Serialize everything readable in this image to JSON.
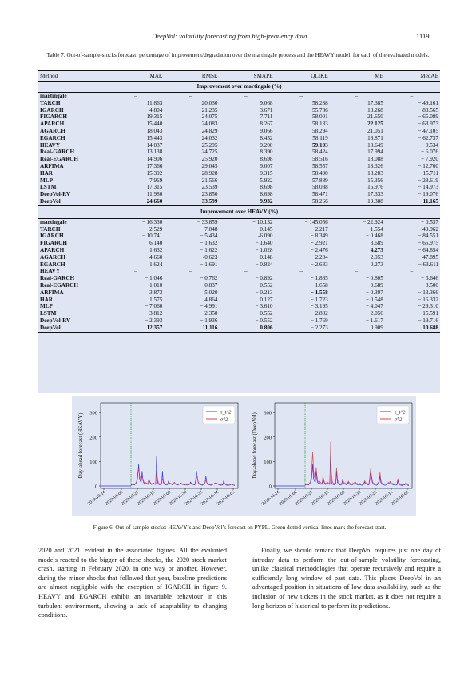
{
  "header": {
    "running_title": "DeepVol: volatility forecasting from high-frequency data",
    "page_number": "1119"
  },
  "table": {
    "caption": "Table 7.  Out-of-sample-stocks forecast: percentage of improvement/degradation over the martingale process and the HEAVY model. for each of the evaluated models.",
    "columns": [
      "Method",
      "MAE",
      "RMSE",
      "SMAPE",
      "QLIKE",
      "ME",
      "MedAE"
    ],
    "section1_title": "Improvement over martingale (%)",
    "section1_rows": [
      {
        "method": "martingale",
        "values": [
          "–",
          "–",
          "–",
          "–",
          "–",
          "–"
        ],
        "bold": []
      },
      {
        "method": "TARCH",
        "values": [
          "11.863",
          "20.030",
          "9.068",
          "58.288",
          "17.385",
          "− 49.161"
        ],
        "bold": []
      },
      {
        "method": "IGARCH",
        "values": [
          "4.804",
          "21.235",
          "3.671",
          "55.786",
          "18.268",
          "− 83.565"
        ],
        "bold": []
      },
      {
        "method": "FIGARCH",
        "values": [
          "19.315",
          "24.075",
          "7.711",
          "58.001",
          "21.650",
          "− 65.089"
        ],
        "bold": []
      },
      {
        "method": "APARCH",
        "values": [
          "15.440",
          "24.083",
          "8.267",
          "58.183",
          "22.125",
          "− 63.973"
        ],
        "bold": [
          4
        ]
      },
      {
        "method": "AGARCH",
        "values": [
          "18.043",
          "24.829",
          "9.066",
          "58.294",
          "21.051",
          "− 47.105"
        ],
        "bold": []
      },
      {
        "method": "EGARCH",
        "values": [
          "15.443",
          "24.032",
          "8.452",
          "58.119",
          "18.871",
          "− 62.737"
        ],
        "bold": []
      },
      {
        "method": "HEAVY",
        "values": [
          "14.037",
          "25.295",
          "9.200",
          "59.193",
          "18.649",
          "0.534"
        ],
        "bold": [
          3
        ]
      },
      {
        "method": "Real-GARCH",
        "values": [
          "13.138",
          "24.725",
          "8.390",
          "58.424",
          "17.994",
          "− 6.076"
        ],
        "bold": []
      },
      {
        "method": "Real-EGARCH",
        "values": [
          "14.906",
          "25.920",
          "8.698",
          "58.516",
          "18.088",
          "− 7.920"
        ],
        "bold": []
      },
      {
        "method": "ARFIMA",
        "values": [
          "17.366",
          "29.045",
          "9.007",
          "58.557",
          "18.326",
          "− 12.760"
        ],
        "bold": []
      },
      {
        "method": "HAR",
        "values": [
          "15.392",
          "28.928",
          "9.315",
          "58.490",
          "18.203",
          "− 15.711"
        ],
        "bold": []
      },
      {
        "method": "MLP",
        "values": [
          "7.969",
          "21.566",
          "5.922",
          "57.889",
          "15.356",
          "− 28.619"
        ],
        "bold": []
      },
      {
        "method": "LSTM",
        "values": [
          "17.315",
          "23.539",
          "8.698",
          "58.088",
          "16.976",
          "− 14.973"
        ],
        "bold": []
      },
      {
        "method": "DeepVol-RV",
        "values": [
          "11.980",
          "23.850",
          "8.698",
          "58.471",
          "17.333",
          "− 19.076"
        ],
        "bold": []
      },
      {
        "method": "DeepVol",
        "values": [
          "24.660",
          "33.599",
          "9.932",
          "58.266",
          "19.388",
          "11.165"
        ],
        "bold": [
          0,
          1,
          2,
          5
        ]
      }
    ],
    "section2_title": "Improvement over HEAVY (%)",
    "section2_rows": [
      {
        "method": "martingale",
        "values": [
          "− 16.330",
          "− 33.859",
          "− 10.132",
          "− 145.056",
          "− 22.924",
          "− 0.537"
        ],
        "bold": []
      },
      {
        "method": "TARCH",
        "values": [
          "− 2.529",
          "− 7.048",
          "− 0.145",
          "− 2.217",
          "− 1.554",
          "− 49.962"
        ],
        "bold": []
      },
      {
        "method": "IGARCH",
        "values": [
          "− 10.741",
          "− 5.434",
          "-6.090",
          "− 8.349",
          "− 0.468",
          "− 84.551"
        ],
        "bold": []
      },
      {
        "method": "FIGARCH",
        "values": [
          "6.140",
          "− 1.632",
          "− 1.640",
          "− 2.921",
          "3.689",
          "− 65.975"
        ],
        "bold": []
      },
      {
        "method": "APARCH",
        "values": [
          "1.632",
          "− 1.622",
          "− 1.028",
          "− 2.476",
          "4.273",
          "− 64.854"
        ],
        "bold": [
          4
        ]
      },
      {
        "method": "AGARCH",
        "values": [
          "4.660",
          "-0.623",
          "− 0.148",
          "− 2.204",
          "2.953",
          "− 47.895"
        ],
        "bold": []
      },
      {
        "method": "EGARCH",
        "values": [
          "1.624",
          "− 1.691",
          "− 0.824",
          "− 2.633",
          "0.273",
          "− 63.611"
        ],
        "bold": []
      },
      {
        "method": "HEAVY",
        "values": [
          "–",
          "–",
          "–",
          "–",
          "–",
          "–"
        ],
        "bold": []
      },
      {
        "method": "Real-GARCH",
        "values": [
          "− 1.046",
          "− 0.762",
          "− 0.892",
          "− 1.885",
          "− 0.805",
          "− 6.646"
        ],
        "bold": []
      },
      {
        "method": "Real-EGARCH",
        "values": [
          "1.010",
          "0.837",
          "− 0.552",
          "− 1.658",
          "− 0.689",
          "− 8.500"
        ],
        "bold": []
      },
      {
        "method": "ARFIMA",
        "values": [
          "3.873",
          "5.020",
          "− 0.213",
          "− 1.558",
          "− 0.397",
          "− 13.366"
        ],
        "bold": [
          3
        ]
      },
      {
        "method": "HAR",
        "values": [
          "1.575",
          "4.864",
          "0.127",
          "− 1.723",
          "− 0.548",
          "− 16.332"
        ],
        "bold": []
      },
      {
        "method": "MLP",
        "values": [
          "− 7.060",
          "− 4.991",
          "− 3.610",
          "− 3.195",
          "− 4.047",
          "− 29.310"
        ],
        "bold": []
      },
      {
        "method": "LSTM",
        "values": [
          "3.812",
          "− 2.350",
          "− 0.552",
          "− 2.802",
          "− 2.056",
          "− 15.591"
        ],
        "bold": []
      },
      {
        "method": "DeepVol-RV",
        "values": [
          "− 2.393",
          "− 1.936",
          "− 0.552",
          "− 1.769",
          "− 1.617",
          "− 19.716"
        ],
        "bold": []
      },
      {
        "method": "DeepVol",
        "values": [
          "12.357",
          "11.116",
          "0.806",
          "− 2.273",
          "0.909",
          "10.688"
        ],
        "bold": [
          0,
          1,
          2,
          5
        ]
      }
    ]
  },
  "figure": {
    "caption": "Figure 6.  Out-of-sample-stocks: HEAVY’s and DeepVol’s forecast on PYPL. Green dotted vertical lines mark the forecast start.",
    "colors": {
      "realized": "#2b2bff",
      "forecast": "#e0303a",
      "start_line": "#2e9e3e",
      "background": "#dfe5f2"
    }
  },
  "chart_data": [
    {
      "type": "line",
      "ylabel": "Day-ahead forecast (HEAVY)",
      "ylim": [
        0,
        330
      ],
      "yticks": [
        "0",
        "100",
        "200",
        "300"
      ],
      "xticks": [
        "2019-10-14",
        "2020-01-06",
        "2020-03-27",
        "2020-06-18",
        "2020-09-09",
        "2020-11-30",
        "2021-02-23",
        "2021-05-14",
        "2021-08-05"
      ],
      "legend": [
        "τ_t^2",
        "σ̂^2"
      ],
      "legend_position": "top-right",
      "forecast_start_index": 2,
      "series": [
        {
          "name": "τ_t^2",
          "values": [
            4,
            5,
            6,
            5,
            4,
            8,
            12,
            18,
            40,
            90,
            30,
            20,
            15,
            60,
            25,
            12,
            9,
            14,
            10,
            8,
            7,
            30,
            18,
            10,
            6,
            8,
            12,
            10,
            8,
            6,
            120,
            20,
            8,
            6,
            5,
            7,
            10,
            60,
            15,
            8,
            6,
            5,
            4,
            6,
            20,
            12,
            10,
            8,
            6,
            5,
            10,
            15,
            8,
            6,
            5,
            4,
            6,
            8,
            10,
            12,
            8,
            6,
            5,
            4,
            6,
            5,
            4,
            3,
            5,
            7,
            16,
            10,
            8,
            6,
            5,
            4,
            25,
            60,
            35,
            15,
            8,
            6,
            5,
            4,
            3,
            6,
            10,
            14,
            40,
            16,
            8,
            6,
            5,
            4,
            3,
            4,
            6,
            8,
            10,
            12,
            14,
            10,
            8,
            6,
            5,
            4,
            3,
            4,
            5,
            22,
            10,
            6,
            4,
            3,
            2,
            3,
            4,
            5,
            8,
            6,
            4,
            3,
            2
          ]
        },
        {
          "name": "σ̂^2",
          "values": [
            6,
            6,
            7,
            6,
            6,
            9,
            14,
            25,
            55,
            70,
            45,
            30,
            22,
            40,
            30,
            18,
            12,
            14,
            12,
            10,
            9,
            22,
            20,
            12,
            9,
            9,
            12,
            11,
            9,
            8,
            60,
            35,
            15,
            10,
            8,
            8,
            10,
            30,
            20,
            12,
            9,
            8,
            7,
            8,
            15,
            13,
            11,
            10,
            8,
            7,
            10,
            13,
            10,
            8,
            7,
            6,
            7,
            8,
            10,
            11,
            9,
            8,
            7,
            6,
            7,
            6,
            5,
            5,
            6,
            8,
            12,
            11,
            9,
            8,
            7,
            6,
            18,
            40,
            30,
            18,
            11,
            9,
            8,
            7,
            6,
            7,
            9,
            12,
            25,
            16,
            10,
            8,
            7,
            6,
            5,
            6,
            7,
            8,
            9,
            11,
            12,
            10,
            9,
            8,
            7,
            6,
            5,
            5,
            6,
            14,
            10,
            7,
            6,
            5,
            4,
            4,
            5,
            6,
            7,
            6,
            5,
            4,
            4
          ]
        }
      ]
    },
    {
      "type": "line",
      "ylabel": "Day-ahead forecast (DeepVol)",
      "ylim": [
        0,
        330
      ],
      "yticks": [
        "0",
        "100",
        "200",
        "300"
      ],
      "xticks": [
        "2019-10-14",
        "2020-01-06",
        "2020-03-27",
        "2020-06-18",
        "2020-09-09",
        "2020-11-30",
        "2021-02-23",
        "2021-05-14",
        "2021-08-05"
      ],
      "legend": [
        "τ_t^2",
        "σ̂^2"
      ],
      "legend_position": "top-right",
      "forecast_start_index": 2,
      "series": [
        {
          "name": "τ_t^2",
          "values": [
            4,
            5,
            6,
            5,
            4,
            8,
            12,
            18,
            40,
            90,
            30,
            20,
            15,
            60,
            25,
            12,
            9,
            14,
            10,
            8,
            7,
            30,
            18,
            10,
            6,
            8,
            12,
            10,
            8,
            6,
            120,
            20,
            8,
            6,
            5,
            7,
            10,
            60,
            15,
            8,
            6,
            5,
            4,
            6,
            20,
            12,
            10,
            8,
            6,
            5,
            10,
            15,
            8,
            6,
            5,
            4,
            6,
            8,
            10,
            12,
            8,
            6,
            5,
            4,
            6,
            5,
            4,
            3,
            5,
            7,
            16,
            10,
            8,
            6,
            5,
            4,
            25,
            60,
            35,
            15,
            8,
            6,
            5,
            4,
            3,
            6,
            10,
            14,
            40,
            16,
            8,
            6,
            5,
            4,
            3,
            4,
            6,
            8,
            10,
            12,
            14,
            10,
            8,
            6,
            5,
            4,
            3,
            4,
            5,
            22,
            10,
            6,
            4,
            3,
            2,
            3,
            4,
            5,
            8,
            6,
            4,
            3,
            2
          ]
        },
        {
          "name": "σ̂^2",
          "values": [
            5,
            6,
            7,
            6,
            5,
            10,
            16,
            30,
            80,
            140,
            60,
            35,
            25,
            75,
            40,
            20,
            14,
            20,
            15,
            12,
            10,
            40,
            25,
            14,
            10,
            12,
            16,
            14,
            12,
            10,
            180,
            50,
            18,
            12,
            10,
            12,
            16,
            75,
            30,
            15,
            11,
            9,
            8,
            10,
            28,
            18,
            14,
            12,
            10,
            9,
            15,
            20,
            13,
            10,
            9,
            8,
            10,
            12,
            14,
            16,
            12,
            10,
            9,
            8,
            10,
            9,
            8,
            7,
            9,
            11,
            22,
            15,
            12,
            10,
            9,
            8,
            35,
            70,
            45,
            22,
            13,
            10,
            9,
            8,
            7,
            10,
            14,
            20,
            55,
            25,
            13,
            10,
            9,
            8,
            7,
            8,
            10,
            12,
            14,
            16,
            18,
            14,
            12,
            10,
            9,
            8,
            7,
            8,
            9,
            30,
            14,
            9,
            7,
            6,
            5,
            6,
            7,
            8,
            11,
            9,
            7,
            6,
            5
          ]
        }
      ]
    }
  ],
  "body": {
    "left_text_1": "2020 and 2021, evident in the associated figures. All the evaluated models reacted to the bigger of these shocks, the 2020 stock market crash, starting in February 2020, in one way or another. However, during the minor shocks that followed that year, baseline predictions are almost negligible with the exception of IGARCH in figure ",
    "left_link": "9",
    "left_text_2": ". HEAVY and EGARCH exhibit an invariable behaviour in this turbulent environment, showing a lack of adaptability to changing conditions.",
    "right_text": "Finally, we should remark that DeepVol requires just one day of intraday data to perform the out-of-sample volatility forecasting, unlike classical methodologies that operate recursively and require a sufficiently long window of past data. This places DeepVol in an advantaged position in situations of low data availability, such as the inclusion of new tickers in the stock market, as it does not require a long horizon of historical to perform its predictions."
  }
}
